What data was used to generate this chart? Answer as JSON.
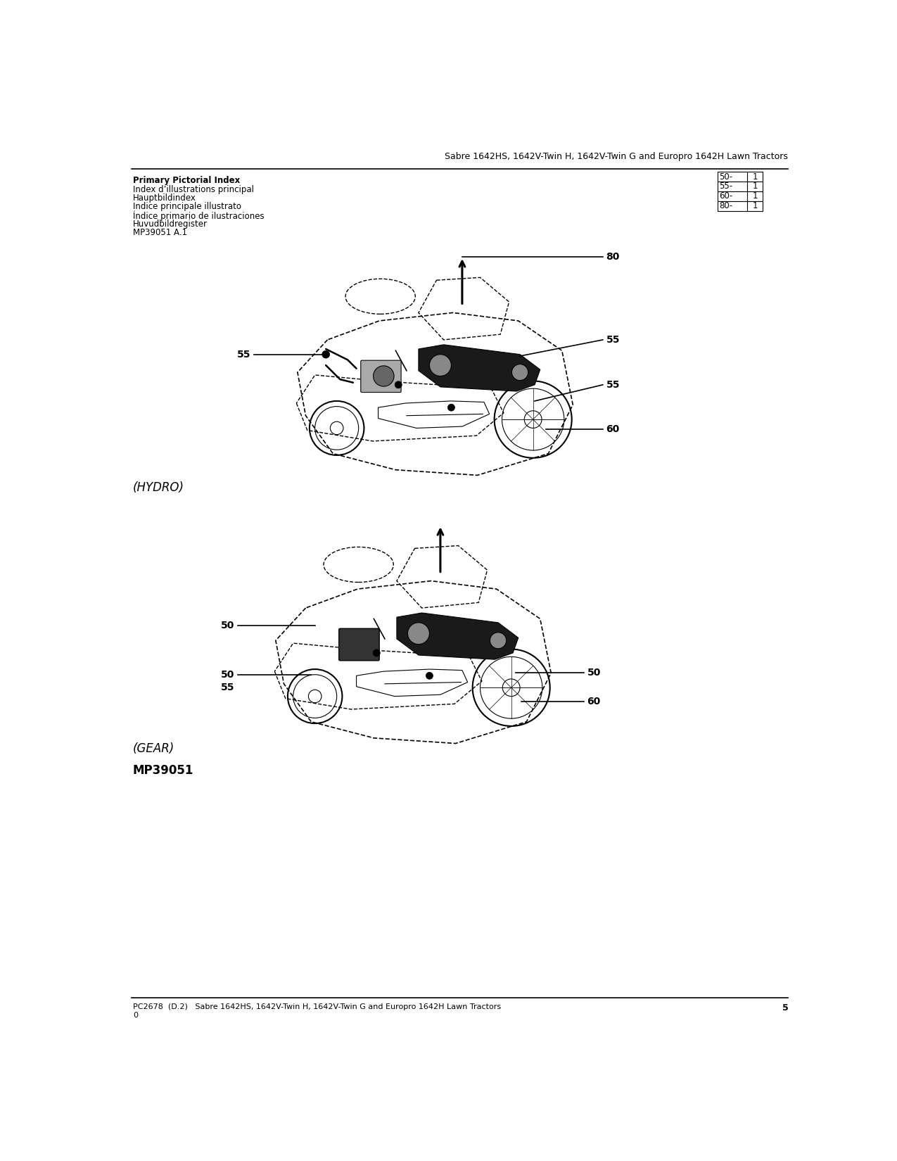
{
  "page_title": "Sabre 1642HS, 1642V-Twin H, 1642V-Twin G and Europro 1642H Lawn Tractors",
  "header_left_lines": [
    "Primary Pictorial Index",
    "Index d’illustrations principal",
    "Hauptbildindex",
    "Indice principale illustrato",
    "Índice primario de ilustraciones",
    "Huvudbildregister"
  ],
  "header_table": [
    [
      "50-",
      "1"
    ],
    [
      "55-",
      "1"
    ],
    [
      "60-",
      "1"
    ],
    [
      "80-",
      "1"
    ]
  ],
  "sub_label": "MP39051 A.1",
  "hydro_label": "(HYDRO)",
  "gear_label": "(GEAR)",
  "gear_sub_label": "MP39051",
  "footer_text": "PC2678  (D.2)   Sabre 1642HS, 1642V-Twin H, 1642V-Twin G and Europro 1642H Lawn Tractors",
  "footer_page": "5",
  "footer_sub": "0",
  "bg_color": "#ffffff",
  "text_color": "#000000"
}
